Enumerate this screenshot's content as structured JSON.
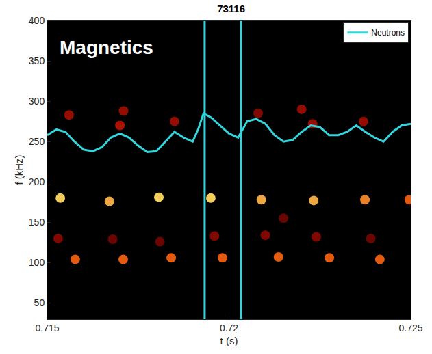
{
  "chart_data": {
    "type": "spectrogram",
    "title": "73116",
    "annotation": "Magnetics",
    "xlabel": "t (s)",
    "ylabel": "f (kHz)",
    "xlim": [
      0.715,
      0.725
    ],
    "ylim": [
      30,
      400
    ],
    "xticks": [
      0.715,
      0.72,
      0.725
    ],
    "yticks": [
      50,
      100,
      150,
      200,
      250,
      300,
      350,
      400
    ],
    "grid": false,
    "legend": "upper right",
    "zlim": [
      0,
      1
    ],
    "bursts": {
      "t": [
        0.71536,
        0.71671,
        0.71807,
        0.7195,
        0.72089,
        0.72233,
        0.72374,
        0.72496,
        0.71577,
        0.71709,
        0.71841,
        0.71982,
        0.72136,
        0.72276,
        0.72415,
        0.7153,
        0.7168,
        0.7181,
        0.7196,
        0.721,
        0.7215,
        0.7224,
        0.7239,
        0.7156,
        0.717,
        0.7171,
        0.7185,
        0.7208,
        0.722,
        0.7223,
        0.7237
      ],
      "f": [
        180,
        176,
        181,
        180,
        178,
        177,
        178,
        178,
        104,
        104,
        106,
        106,
        107,
        106,
        104,
        130,
        129,
        126,
        133,
        134,
        155,
        132,
        130,
        283,
        270,
        288,
        275,
        285,
        290,
        272,
        275
      ],
      "amplitude": [
        1,
        0.95,
        1,
        1,
        0.95,
        0.95,
        0.9,
        0.85,
        0.85,
        0.85,
        0.85,
        0.85,
        0.85,
        0.85,
        0.85,
        0.45,
        0.4,
        0.4,
        0.45,
        0.45,
        0.4,
        0.45,
        0.4,
        0.5,
        0.55,
        0.5,
        0.5,
        0.45,
        0.5,
        0.5,
        0.5
      ]
    },
    "vlines": [
      0.71933,
      0.72033
    ],
    "series": [
      {
        "name": "Neutrons",
        "color": "#33d4dc",
        "x": [
          0.715,
          0.71525,
          0.7155,
          0.71575,
          0.716,
          0.71625,
          0.7165,
          0.71675,
          0.717,
          0.71725,
          0.7175,
          0.71775,
          0.718,
          0.71825,
          0.7185,
          0.71875,
          0.719,
          0.71915,
          0.7193,
          0.7195,
          0.71975,
          0.72,
          0.72025,
          0.7205,
          0.72075,
          0.721,
          0.72125,
          0.7215,
          0.72175,
          0.722,
          0.72225,
          0.7225,
          0.72275,
          0.723,
          0.72325,
          0.7235,
          0.72375,
          0.724,
          0.72425,
          0.7245,
          0.72475,
          0.725
        ],
        "values": [
          258,
          265,
          262,
          250,
          240,
          238,
          243,
          255,
          260,
          255,
          245,
          237,
          238,
          250,
          262,
          255,
          250,
          265,
          285,
          280,
          270,
          260,
          255,
          275,
          278,
          272,
          258,
          250,
          252,
          262,
          270,
          268,
          258,
          258,
          262,
          270,
          262,
          255,
          250,
          262,
          270,
          272
        ]
      }
    ]
  }
}
